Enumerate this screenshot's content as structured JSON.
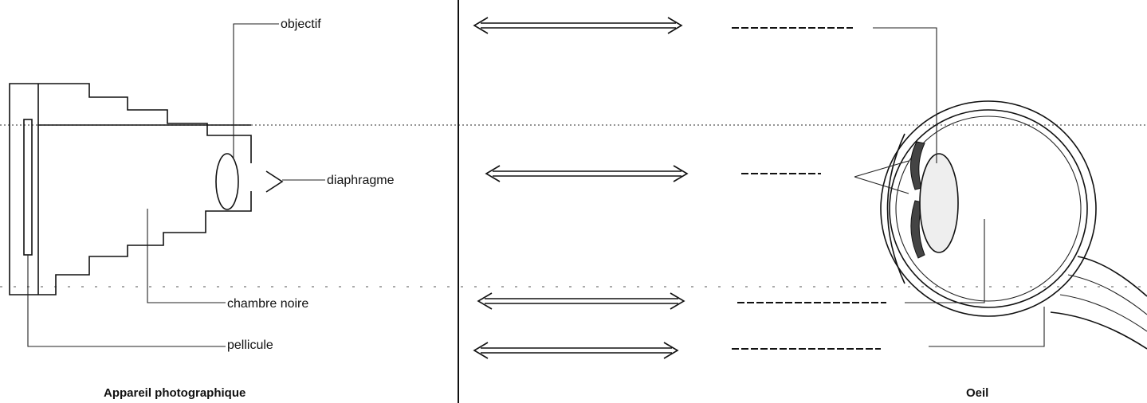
{
  "camera": {
    "caption": "Appareil photographique",
    "labels": {
      "objectif": "objectif",
      "diaphragme": "diaphragme",
      "chambre_noire": "chambre noire",
      "pellicule": "pellicule"
    }
  },
  "eye": {
    "caption": "Oeil"
  }
}
